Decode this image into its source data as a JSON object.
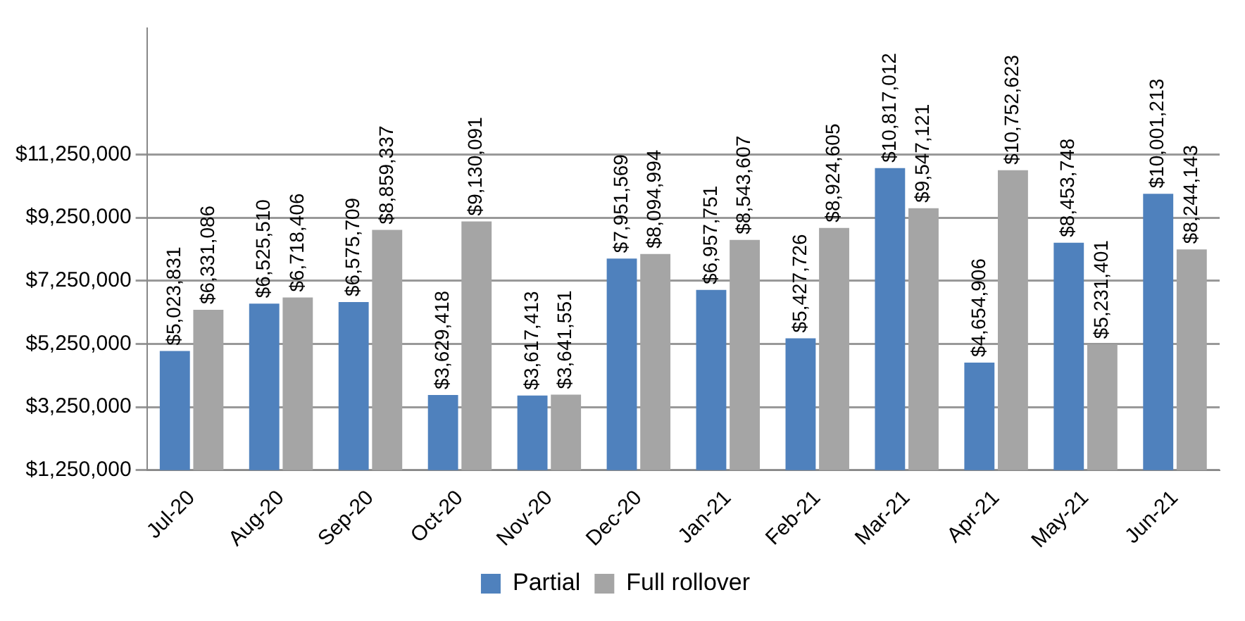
{
  "chart_data": {
    "type": "bar",
    "categories": [
      "Jul-20",
      "Aug-20",
      "Sep-20",
      "Oct-20",
      "Nov-20",
      "Dec-20",
      "Jan-21",
      "Feb-21",
      "Mar-21",
      "Apr-21",
      "May-21",
      "Jun-21"
    ],
    "series": [
      {
        "name": "Partial",
        "color": "#4f81bd",
        "values": [
          5023831,
          6525510,
          6575709,
          3629418,
          3617413,
          7951569,
          6957751,
          5427726,
          10817012,
          4654906,
          8453748,
          10001213
        ],
        "value_labels": [
          "$5,023,831",
          "$6,525,510",
          "$6,575,709",
          "$3,629,418",
          "$3,617,413",
          "$7,951,569",
          "$6,957,751",
          "$5,427,726",
          "$10,817,012",
          "$4,654,906",
          "$8,453,748",
          "$10,001,213"
        ]
      },
      {
        "name": "Full rollover",
        "color": "#a5a5a5",
        "values": [
          6331086,
          6718406,
          8859337,
          9130091,
          3641551,
          8094994,
          8543607,
          8924605,
          9547121,
          10752623,
          5231401,
          8244143
        ],
        "value_labels": [
          "$6,331,086",
          "$6,718,406",
          "$8,859,337",
          "$9,130,091",
          "$3,641,551",
          "$8,094,994",
          "$8,543,607",
          "$8,924,605",
          "$9,547,121",
          "$10,752,623",
          "$5,231,401",
          "$8,244,143"
        ]
      }
    ],
    "ylim": [
      1250000,
      15250000
    ],
    "yticks": [
      {
        "value": 1250000,
        "label": "$1,250,000"
      },
      {
        "value": 3250000,
        "label": "$3,250,000"
      },
      {
        "value": 5250000,
        "label": "$5,250,000"
      },
      {
        "value": 7250000,
        "label": "$7,250,000"
      },
      {
        "value": 9250000,
        "label": "$9,250,000"
      },
      {
        "value": 11250000,
        "label": "$11,250,000"
      }
    ],
    "grid": "y",
    "legend": "bottom"
  }
}
